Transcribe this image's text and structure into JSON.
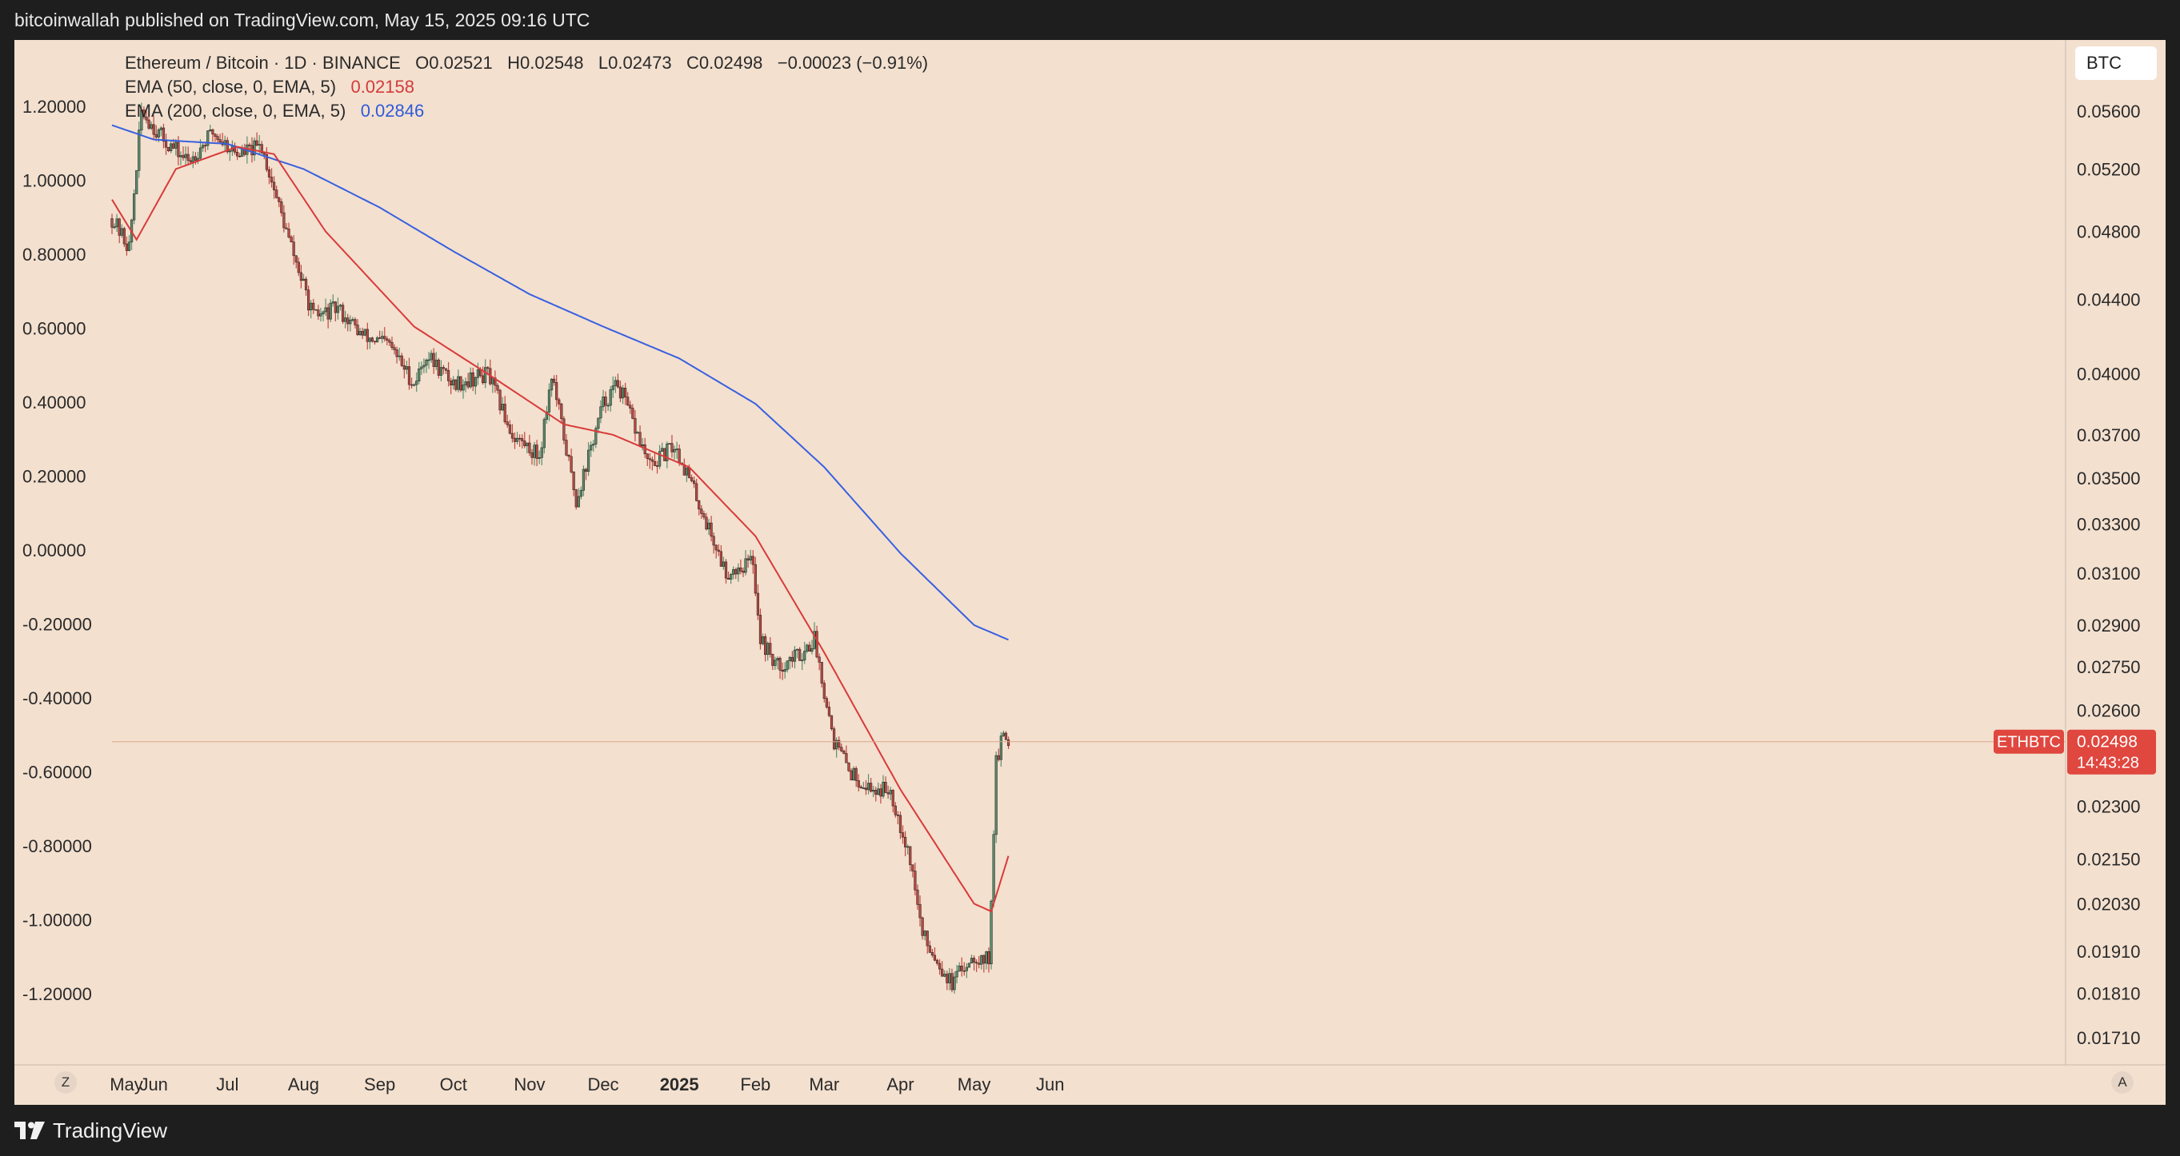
{
  "header": {
    "published": "bitcoinwallah published on TradingView.com, May 15, 2025 09:16 UTC"
  },
  "footer": {
    "brand": "TradingView"
  },
  "legend": {
    "symbol": "Ethereum / Bitcoin · 1D · BINANCE",
    "open": "O0.02521",
    "high": "H0.02548",
    "low": "L0.02473",
    "close": "C0.02498",
    "change": "−0.00023 (−0.91%)",
    "ema50_label": "EMA (50, close, 0, EMA, 5)",
    "ema50_value": "0.02158",
    "ema200_label": "EMA (200, close, 0, EMA, 5)",
    "ema200_value": "0.02846"
  },
  "currency_badge": "BTC",
  "price_tag": {
    "symbol": "ETHBTC",
    "price": "0.02498",
    "countdown": "14:43:28"
  },
  "corner_buttons": {
    "left": "Z",
    "right": "A"
  },
  "colors": {
    "background": "#f3e0cf",
    "up_candle": "#5b8f6c",
    "down_candle": "#c2473f",
    "ema50": "#d93a3a",
    "ema200": "#3860e0",
    "price_tag": "#e0473f"
  },
  "chart_data": {
    "type": "candlestick",
    "left_axis": {
      "ticks": [
        "1.20000",
        "1.00000",
        "0.80000",
        "0.60000",
        "0.40000",
        "0.20000",
        "0.00000",
        "-0.20000",
        "-0.40000",
        "-0.60000",
        "-0.80000",
        "-1.00000",
        "-1.20000"
      ]
    },
    "right_axis": {
      "scale": "log",
      "ticks": [
        "0.05600",
        "0.05200",
        "0.04800",
        "0.04400",
        "0.04000",
        "0.03700",
        "0.03500",
        "0.03300",
        "0.03100",
        "0.02900",
        "0.02750",
        "0.02600",
        "0.02300",
        "0.02150",
        "0.02030",
        "0.01910",
        "0.01810",
        "0.01710"
      ]
    },
    "x_ticks": [
      "May",
      "Jun",
      "Jul",
      "Aug",
      "Sep",
      "Oct",
      "Nov",
      "Dec",
      "2025",
      "Feb",
      "Mar",
      "Apr",
      "May",
      "Jun"
    ],
    "close_anchors": [
      {
        "date": "2024-05-15",
        "close": 0.0488
      },
      {
        "date": "2024-05-22",
        "close": 0.047
      },
      {
        "date": "2024-05-27",
        "close": 0.056
      },
      {
        "date": "2024-06-05",
        "close": 0.054
      },
      {
        "date": "2024-06-15",
        "close": 0.0525
      },
      {
        "date": "2024-06-25",
        "close": 0.0545
      },
      {
        "date": "2024-07-05",
        "close": 0.053
      },
      {
        "date": "2024-07-15",
        "close": 0.0535
      },
      {
        "date": "2024-07-25",
        "close": 0.048
      },
      {
        "date": "2024-08-05",
        "close": 0.043
      },
      {
        "date": "2024-08-15",
        "close": 0.0435
      },
      {
        "date": "2024-08-25",
        "close": 0.042
      },
      {
        "date": "2024-09-05",
        "close": 0.0415
      },
      {
        "date": "2024-09-15",
        "close": 0.0395
      },
      {
        "date": "2024-09-20",
        "close": 0.041
      },
      {
        "date": "2024-10-01",
        "close": 0.0395
      },
      {
        "date": "2024-10-15",
        "close": 0.04
      },
      {
        "date": "2024-10-25",
        "close": 0.037
      },
      {
        "date": "2024-11-05",
        "close": 0.036
      },
      {
        "date": "2024-11-10",
        "close": 0.04
      },
      {
        "date": "2024-11-20",
        "close": 0.034
      },
      {
        "date": "2024-11-25",
        "close": 0.036
      },
      {
        "date": "2024-12-01",
        "close": 0.0385
      },
      {
        "date": "2024-12-07",
        "close": 0.0395
      },
      {
        "date": "2024-12-20",
        "close": 0.0355
      },
      {
        "date": "2024-12-30",
        "close": 0.0365
      },
      {
        "date": "2025-01-05",
        "close": 0.035
      },
      {
        "date": "2025-01-20",
        "close": 0.031
      },
      {
        "date": "2025-01-31",
        "close": 0.0315
      },
      {
        "date": "2025-02-03",
        "close": 0.0285
      },
      {
        "date": "2025-02-10",
        "close": 0.0275
      },
      {
        "date": "2025-02-20",
        "close": 0.028
      },
      {
        "date": "2025-02-25",
        "close": 0.0285
      },
      {
        "date": "2025-03-05",
        "close": 0.025
      },
      {
        "date": "2025-03-12",
        "close": 0.024
      },
      {
        "date": "2025-03-20",
        "close": 0.0235
      },
      {
        "date": "2025-03-28",
        "close": 0.0235
      },
      {
        "date": "2025-04-05",
        "close": 0.0215
      },
      {
        "date": "2025-04-10",
        "close": 0.0195
      },
      {
        "date": "2025-04-22",
        "close": 0.0183
      },
      {
        "date": "2025-04-30",
        "close": 0.019
      },
      {
        "date": "2025-05-07",
        "close": 0.0189
      },
      {
        "date": "2025-05-08",
        "close": 0.0205
      },
      {
        "date": "2025-05-10",
        "close": 0.0243
      },
      {
        "date": "2025-05-13",
        "close": 0.0252
      },
      {
        "date": "2025-05-15",
        "close": 0.025
      }
    ],
    "ema50_anchors": [
      {
        "date": "2024-05-15",
        "value": 0.05
      },
      {
        "date": "2024-05-25",
        "value": 0.0475
      },
      {
        "date": "2024-06-10",
        "value": 0.052
      },
      {
        "date": "2024-07-05",
        "value": 0.0535
      },
      {
        "date": "2024-07-20",
        "value": 0.053
      },
      {
        "date": "2024-08-10",
        "value": 0.048
      },
      {
        "date": "2024-09-15",
        "value": 0.0425
      },
      {
        "date": "2024-10-15",
        "value": 0.04
      },
      {
        "date": "2024-11-15",
        "value": 0.0375
      },
      {
        "date": "2024-12-05",
        "value": 0.037
      },
      {
        "date": "2025-01-05",
        "value": 0.0355
      },
      {
        "date": "2025-02-01",
        "value": 0.0325
      },
      {
        "date": "2025-03-01",
        "value": 0.028
      },
      {
        "date": "2025-04-01",
        "value": 0.0235
      },
      {
        "date": "2025-05-01",
        "value": 0.0203
      },
      {
        "date": "2025-05-08",
        "value": 0.0201
      },
      {
        "date": "2025-05-15",
        "value": 0.02158
      }
    ],
    "ema200_anchors": [
      {
        "date": "2024-05-15",
        "value": 0.055
      },
      {
        "date": "2024-06-01",
        "value": 0.054
      },
      {
        "date": "2024-07-01",
        "value": 0.0537
      },
      {
        "date": "2024-08-01",
        "value": 0.052
      },
      {
        "date": "2024-09-01",
        "value": 0.0495
      },
      {
        "date": "2024-10-01",
        "value": 0.0468
      },
      {
        "date": "2024-11-01",
        "value": 0.0443
      },
      {
        "date": "2024-12-01",
        "value": 0.0425
      },
      {
        "date": "2025-01-01",
        "value": 0.0408
      },
      {
        "date": "2025-02-01",
        "value": 0.0385
      },
      {
        "date": "2025-03-01",
        "value": 0.0355
      },
      {
        "date": "2025-04-01",
        "value": 0.0318
      },
      {
        "date": "2025-05-01",
        "value": 0.029
      },
      {
        "date": "2025-05-15",
        "value": 0.02846
      }
    ],
    "current_price": 0.02498
  }
}
